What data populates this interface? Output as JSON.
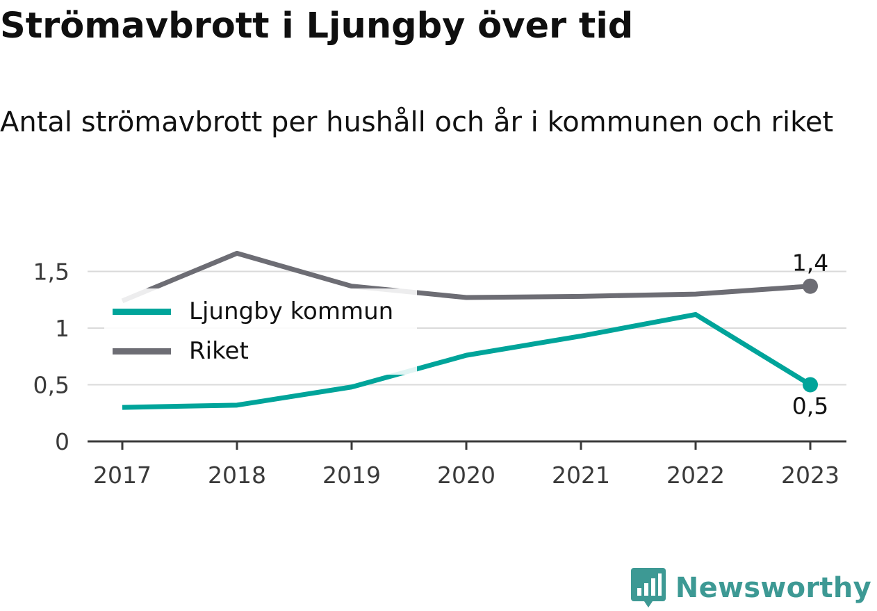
{
  "title": "Strömavbrott i Ljungby över tid",
  "subtitle": "Antal strömavbrott per hushåll och år i kommunen och riket",
  "chart_data": {
    "type": "line",
    "x": [
      "2017",
      "2018",
      "2019",
      "2020",
      "2021",
      "2022",
      "2023"
    ],
    "series": [
      {
        "name": "Ljungby kommun",
        "values": [
          0.3,
          0.32,
          0.48,
          0.76,
          0.93,
          1.12,
          0.5
        ],
        "color": "#00a49a",
        "end_label": "0,5"
      },
      {
        "name": "Riket",
        "values": [
          1.24,
          1.66,
          1.37,
          1.27,
          1.28,
          1.3,
          1.37
        ],
        "color": "#6d6d74",
        "end_label": "1,4"
      }
    ],
    "ylim": [
      0,
      1.8
    ],
    "yticks": [
      {
        "value": 0,
        "label": "0"
      },
      {
        "value": 0.5,
        "label": "0,5"
      },
      {
        "value": 1,
        "label": "1"
      },
      {
        "value": 1.5,
        "label": "1,5"
      }
    ],
    "grid": true,
    "legend_position": "top-left"
  },
  "brand": {
    "name": "Newsworthy",
    "color": "#3d9994",
    "icon": "newsworthy-logo-icon"
  }
}
